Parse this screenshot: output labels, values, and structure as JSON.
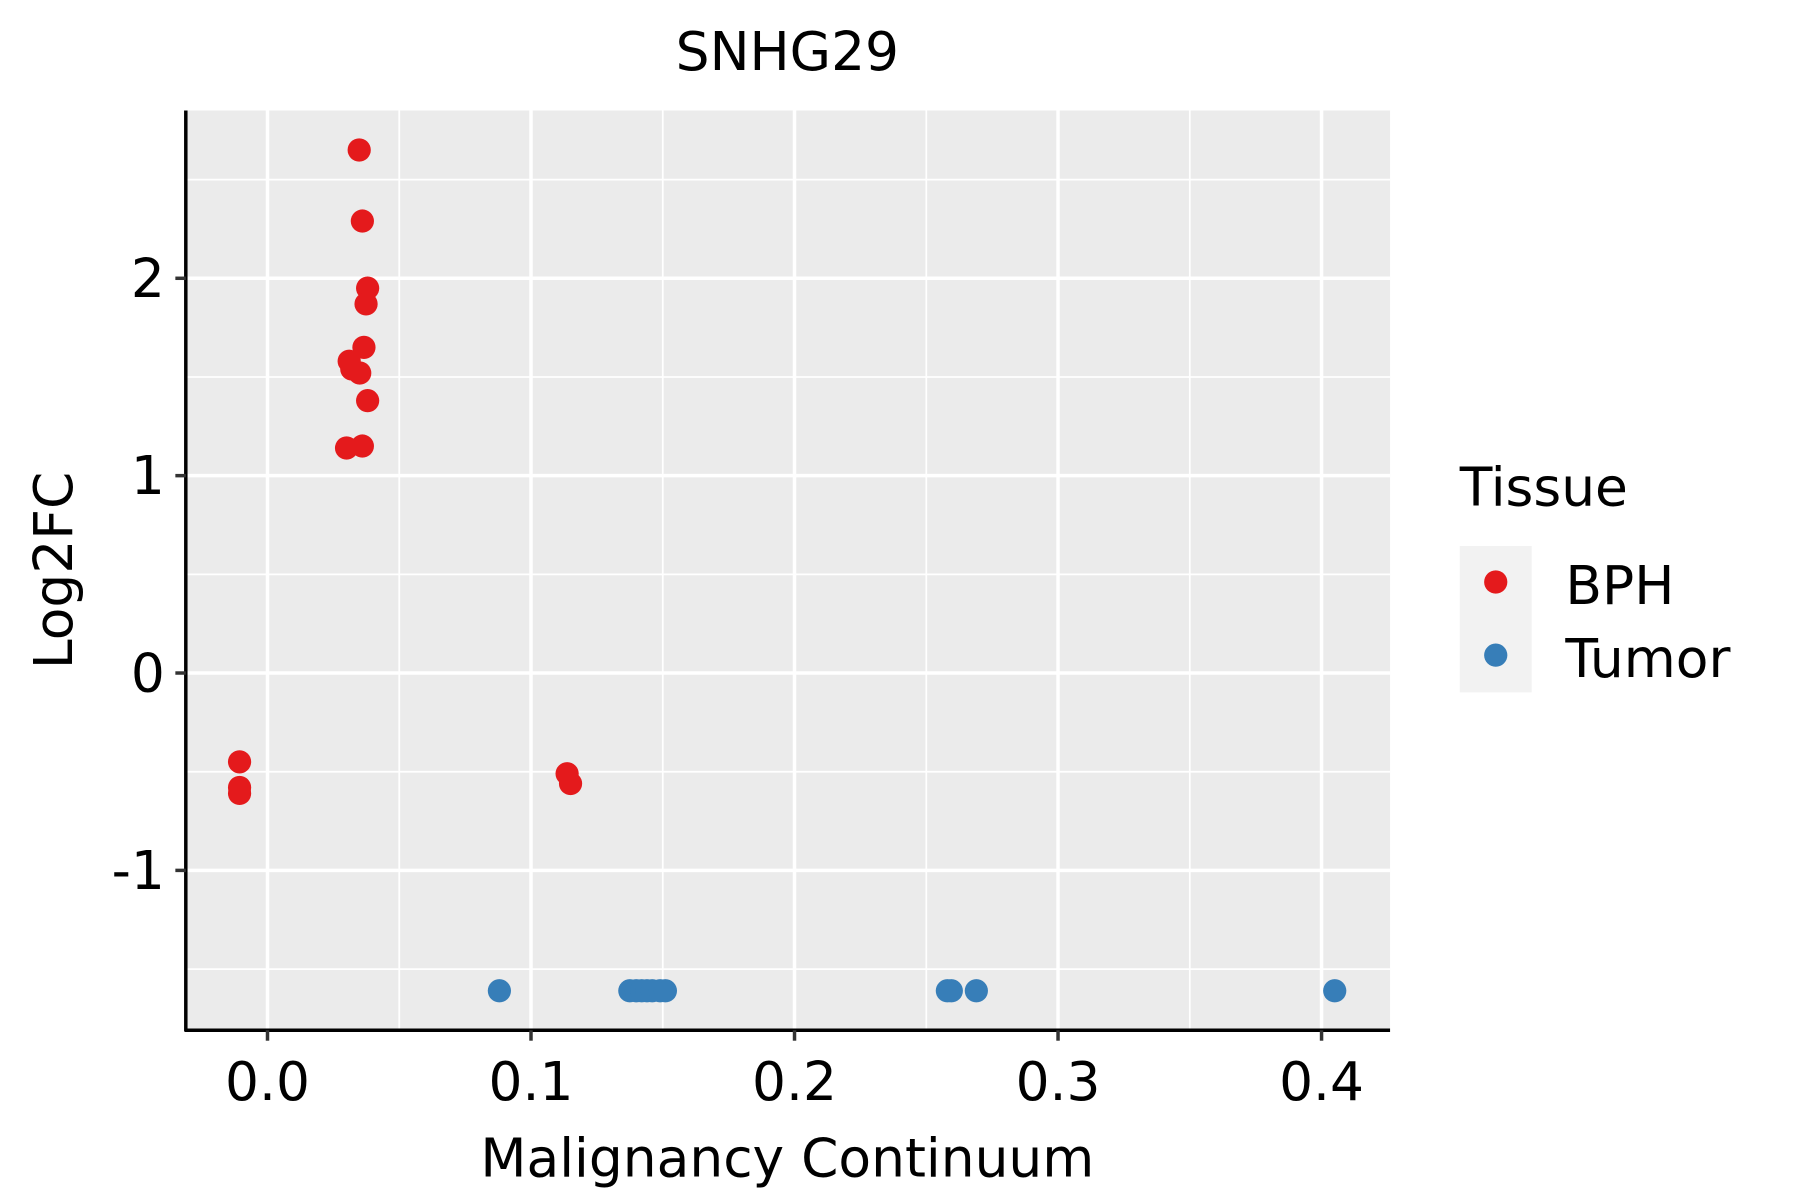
{
  "chart_data": {
    "type": "scatter",
    "title": "SNHG29",
    "xlabel": "Malignancy Continuum",
    "ylabel": "Log2FC",
    "xlim": [
      -0.031,
      0.426
    ],
    "ylim": [
      -1.81,
      2.85
    ],
    "xticks": [
      0.0,
      0.1,
      0.2,
      0.3,
      0.4
    ],
    "xtick_labels": [
      "0.0",
      "0.1",
      "0.2",
      "0.3",
      "0.4"
    ],
    "yticks": [
      -1,
      0,
      1,
      2
    ],
    "ytick_labels": [
      "-1",
      "0",
      "1",
      "2"
    ],
    "grid": true,
    "legend": {
      "title": "Tissue",
      "placement": "right"
    },
    "series": [
      {
        "name": "BPH",
        "color": "#E41A1C",
        "x": [
          0.0348,
          0.036,
          0.038,
          0.0374,
          0.0366,
          0.031,
          0.032,
          0.035,
          0.038,
          0.03,
          0.036,
          -0.0106,
          -0.0106,
          -0.0106,
          0.1137,
          0.115
        ],
        "y": [
          2.65,
          2.29,
          1.95,
          1.87,
          1.65,
          1.58,
          1.54,
          1.52,
          1.38,
          1.14,
          1.15,
          -0.45,
          -0.58,
          -0.61,
          -0.51,
          -0.56
        ]
      },
      {
        "name": "Tumor",
        "color": "#377EB8",
        "x": [
          0.088,
          0.1375,
          0.14,
          0.142,
          0.144,
          0.146,
          0.149,
          0.151,
          0.258,
          0.2595,
          0.269,
          0.405
        ],
        "y": [
          -1.61,
          -1.61,
          -1.61,
          -1.61,
          -1.61,
          -1.61,
          -1.61,
          -1.61,
          -1.61,
          -1.61,
          -1.61,
          -1.61
        ]
      }
    ]
  }
}
